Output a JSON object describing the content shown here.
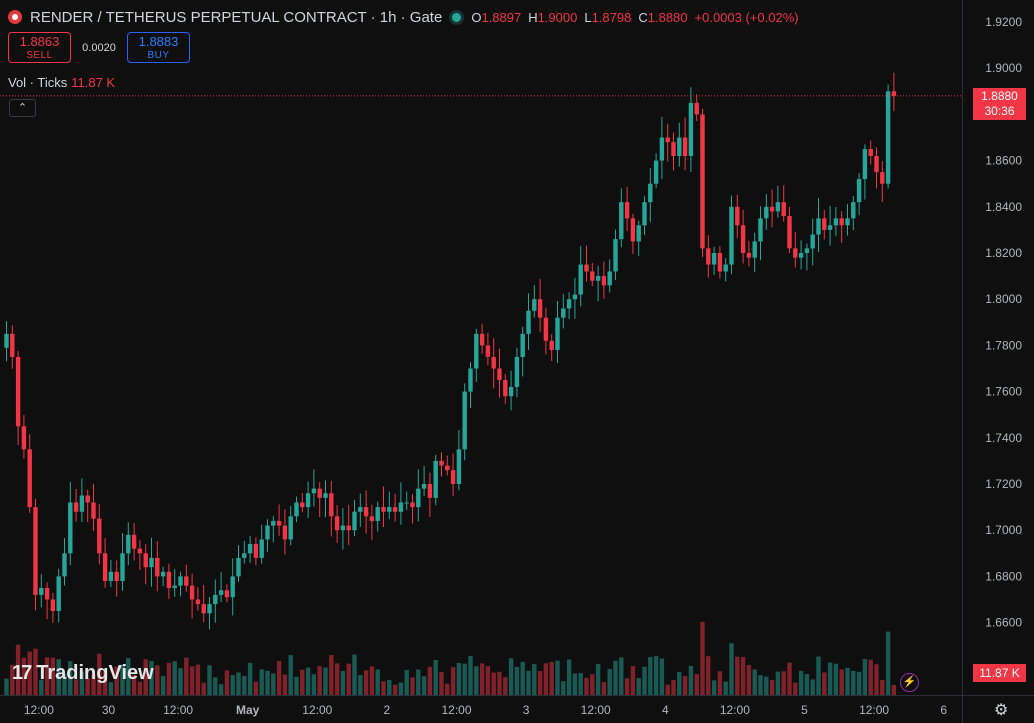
{
  "header": {
    "symbol": "RENDER / TETHERUS PERPETUAL CONTRACT · 1h · Gate",
    "o_label": "O",
    "o": "1.8897",
    "h_label": "H",
    "h": "1.9000",
    "l_label": "L",
    "l": "1.8798",
    "c_label": "C",
    "c": "1.8880",
    "change": "+0.0003 (+0.02%)"
  },
  "trade": {
    "sell_price": "1.8863",
    "sell_label": "SELL",
    "spread": "0.0020",
    "buy_price": "1.8883",
    "buy_label": "BUY"
  },
  "volume_legend": {
    "label": "Vol · Ticks",
    "value": "11.87 K"
  },
  "last_price": {
    "price": "1.8880",
    "countdown": "30:36"
  },
  "volume_last": "11.87 K",
  "brand": "TradingView",
  "colors": {
    "up": "#26a69a",
    "down": "#f23645",
    "background": "#0f0f0f"
  },
  "icons": {
    "collapse": "chevron-up-icon",
    "settings": "gear-icon",
    "bolt": "lightning-icon"
  },
  "chart_data": {
    "type": "candlestick",
    "ylim": [
      1.645,
      1.925
    ],
    "y_ticks": [
      "1.9200",
      "1.9000",
      "1.8800",
      "1.8600",
      "1.8400",
      "1.8200",
      "1.8000",
      "1.7800",
      "1.7600",
      "1.7400",
      "1.7200",
      "1.7000",
      "1.6800",
      "1.6600"
    ],
    "x_ticks": [
      {
        "label": "12:00",
        "index": 3
      },
      {
        "label": "30",
        "index": 15
      },
      {
        "label": "12:00",
        "index": 27
      },
      {
        "label": "May",
        "index": 39
      },
      {
        "label": "12:00",
        "index": 51
      },
      {
        "label": "2",
        "index": 63
      },
      {
        "label": "12:00",
        "index": 75
      },
      {
        "label": "3",
        "index": 87
      },
      {
        "label": "12:00",
        "index": 99
      },
      {
        "label": "4",
        "index": 111
      },
      {
        "label": "12:00",
        "index": 123
      },
      {
        "label": "5",
        "index": 135
      },
      {
        "label": "12:00",
        "index": 147
      },
      {
        "label": "6",
        "index": 159
      }
    ],
    "last_price": 1.888,
    "closes": [
      1.785,
      1.775,
      1.745,
      1.735,
      1.71,
      1.672,
      1.675,
      1.67,
      1.665,
      1.68,
      1.69,
      1.712,
      1.708,
      1.715,
      1.712,
      1.705,
      1.69,
      1.678,
      1.682,
      1.678,
      1.69,
      1.698,
      1.692,
      1.69,
      1.684,
      1.688,
      1.68,
      1.682,
      1.675,
      1.676,
      1.68,
      1.676,
      1.67,
      1.668,
      1.664,
      1.668,
      1.672,
      1.674,
      1.671,
      1.68,
      1.688,
      1.69,
      1.694,
      1.688,
      1.696,
      1.702,
      1.704,
      1.702,
      1.696,
      1.706,
      1.712,
      1.71,
      1.716,
      1.718,
      1.714,
      1.716,
      1.706,
      1.7,
      1.702,
      1.7,
      1.708,
      1.71,
      1.706,
      1.704,
      1.71,
      1.708,
      1.71,
      1.708,
      1.712,
      1.712,
      1.71,
      1.718,
      1.72,
      1.714,
      1.73,
      1.728,
      1.726,
      1.72,
      1.735,
      1.76,
      1.77,
      1.785,
      1.78,
      1.775,
      1.77,
      1.765,
      1.758,
      1.762,
      1.775,
      1.785,
      1.795,
      1.8,
      1.792,
      1.782,
      1.778,
      1.792,
      1.796,
      1.8,
      1.802,
      1.815,
      1.812,
      1.808,
      1.81,
      1.806,
      1.812,
      1.826,
      1.842,
      1.835,
      1.825,
      1.832,
      1.842,
      1.85,
      1.86,
      1.87,
      1.868,
      1.862,
      1.87,
      1.862,
      1.885,
      1.88,
      1.822,
      1.815,
      1.82,
      1.812,
      1.815,
      1.84,
      1.832,
      1.82,
      1.818,
      1.825,
      1.835,
      1.84,
      1.838,
      1.842,
      1.836,
      1.822,
      1.818,
      1.82,
      1.822,
      1.828,
      1.835,
      1.83,
      1.832,
      1.835,
      1.832,
      1.835,
      1.842,
      1.852,
      1.865,
      1.862,
      1.855,
      1.85,
      1.89,
      1.888
    ],
    "volume": {
      "last": 11.87,
      "unit": "K"
    }
  }
}
